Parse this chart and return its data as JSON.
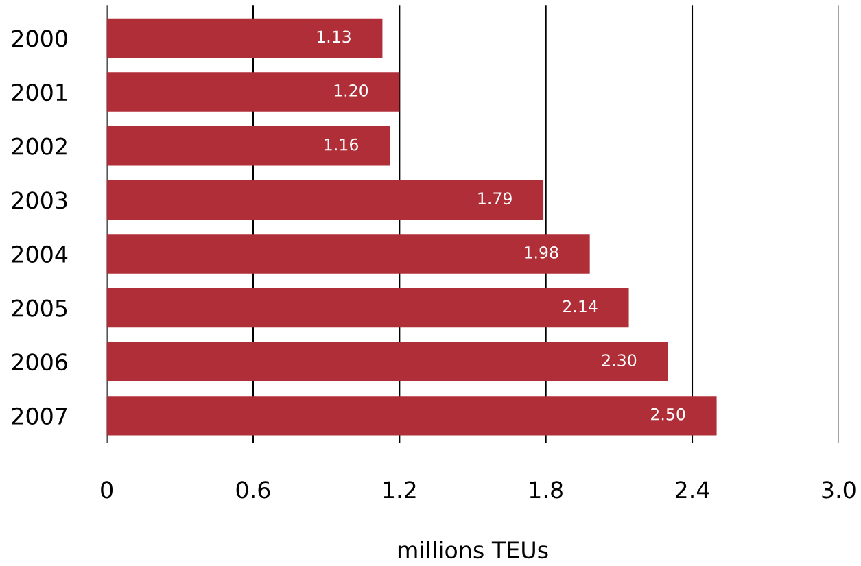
{
  "chart_data": {
    "type": "bar",
    "orientation": "horizontal",
    "xlabel": "millions TEUs",
    "categories": [
      "2000",
      "2001",
      "2002",
      "2003",
      "2004",
      "2005",
      "2006",
      "2007"
    ],
    "values": [
      1.13,
      1.2,
      1.16,
      1.79,
      1.98,
      2.14,
      2.3,
      2.5
    ],
    "value_labels": [
      "1.13",
      "1.20",
      "1.16",
      "1.79",
      "1.98",
      "2.14",
      "2.30",
      "2.50"
    ],
    "color": "#b02e37",
    "xlim": [
      0,
      3.0
    ],
    "xticks": [
      0,
      0.6,
      1.2,
      1.8,
      2.4,
      {
        "value": 3.0,
        "label": "3.0"
      }
    ],
    "grid": "x"
  }
}
